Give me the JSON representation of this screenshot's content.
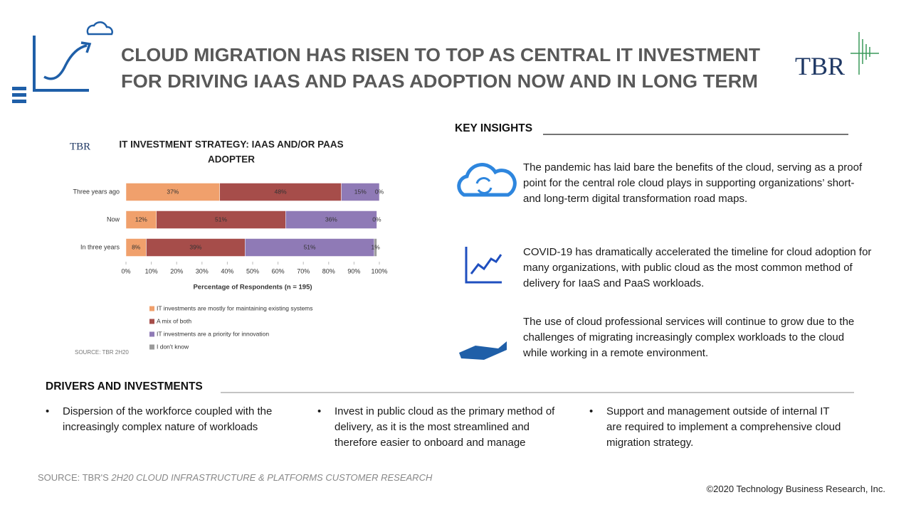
{
  "header": {
    "title_lines": [
      "CLOUD MIGRATION HAS RISEN TO TOP AS CENTRAL IT INVESTMENT",
      "FOR DRIVING IAAS AND PAAS ADOPTION NOW AND IN LONG TERM"
    ],
    "logo": "TBR"
  },
  "chart_data": {
    "type": "stacked-bar-horizontal",
    "title_lines": [
      "IT INVESTMENT STRATEGY: IAAS AND/OR PAAS",
      "ADOPTER"
    ],
    "logo": "TBR",
    "categories": [
      "Three years ago",
      "Now",
      "In three years"
    ],
    "series": [
      {
        "name": "IT investments are mostly for maintaining existing systems",
        "color": "#f0a06c",
        "values": [
          37,
          12,
          8
        ],
        "value_labels": [
          "37%",
          "12%",
          "8%"
        ]
      },
      {
        "name": "A mix of both",
        "color": "#a64d4a",
        "values": [
          48,
          51,
          39
        ],
        "value_labels": [
          "48%",
          "51%",
          "39%"
        ]
      },
      {
        "name": "IT investments are a priority for innovation",
        "color": "#8f7ab6",
        "values": [
          15,
          36,
          51
        ],
        "value_labels": [
          "15%",
          "36%",
          "51%"
        ]
      },
      {
        "name": "I don't know",
        "color": "#9a9a9a",
        "values": [
          0,
          0,
          1
        ],
        "value_labels": [
          "0%",
          "0%",
          "1%"
        ]
      }
    ],
    "xlim": [
      0,
      100
    ],
    "xticks": [
      {
        "value": 0,
        "label": "0%"
      },
      {
        "value": 10,
        "label": "10%"
      },
      {
        "value": 20,
        "label": "20%"
      },
      {
        "value": 30,
        "label": "30%"
      },
      {
        "value": 40,
        "label": "40%"
      },
      {
        "value": 50,
        "label": "50%"
      },
      {
        "value": 60,
        "label": "60%"
      },
      {
        "value": 70,
        "label": "70%"
      },
      {
        "value": 80,
        "label": "80%"
      },
      {
        "value": 90,
        "label": "90%"
      },
      {
        "value": 100,
        "label": "100%"
      }
    ],
    "xlabel": "Percentage of Respondents (n = 195)",
    "source": "SOURCE: TBR 2H20",
    "legend": "bottom"
  },
  "key_insights": {
    "heading": "KEY INSIGHTS",
    "items": [
      "The pandemic has laid bare the benefits of the cloud, serving as a proof point for the central role cloud plays in supporting organizations’ short- and long-term digital transformation road maps.",
      "COVID-19 has dramatically accelerated the timeline for cloud adoption for many organizations, with public cloud as the most common method of delivery for IaaS and PaaS workloads.",
      "The use of cloud professional services will continue to grow due to the challenges of migrating increasingly complex workloads to the cloud while working in a remote environment."
    ]
  },
  "drivers": {
    "heading": "DRIVERS AND INVESTMENTS",
    "items": [
      "Dispersion of the workforce coupled with the increasingly complex nature of workloads",
      "Invest in public cloud as the primary method of delivery, as it is the most streamlined and therefore easier to onboard and manage",
      "Support and management outside of internal IT are required to implement a comprehensive cloud migration strategy."
    ]
  },
  "footer": {
    "source_prefix": "SOURCE: TBR'S ",
    "source_italic": "2H20 CLOUD INFRASTRUCTURE & PLATFORMS CUSTOMER RESEARCH",
    "copyright": "©2020 Technology Business Research, Inc."
  }
}
